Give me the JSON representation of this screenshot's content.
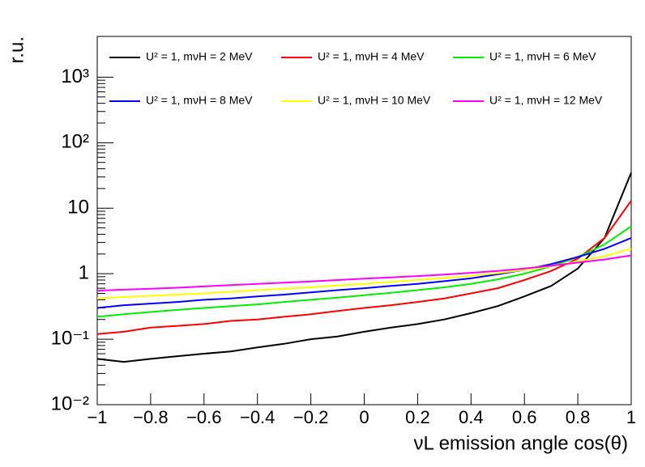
{
  "chart_data": {
    "type": "line",
    "x_label": "νL emission angle cos(θ)",
    "y_label": "r.u.",
    "x": [
      -1,
      -0.9,
      -0.8,
      -0.7,
      -0.6,
      -0.5,
      -0.4,
      -0.3,
      -0.2,
      -0.1,
      0,
      0.1,
      0.2,
      0.3,
      0.4,
      0.5,
      0.6,
      0.7,
      0.8,
      0.9,
      1
    ],
    "series": [
      {
        "name": "U² = 1, mνH = 2 MeV",
        "color": "#000000",
        "values": [
          0.05,
          0.045,
          0.05,
          0.055,
          0.06,
          0.065,
          0.075,
          0.085,
          0.1,
          0.11,
          0.13,
          0.15,
          0.17,
          0.2,
          0.25,
          0.32,
          0.45,
          0.65,
          1.2,
          3.5,
          35
        ]
      },
      {
        "name": "U² = 1, mνH = 4 MeV",
        "color": "#ff0000",
        "values": [
          0.12,
          0.13,
          0.15,
          0.16,
          0.17,
          0.19,
          0.2,
          0.22,
          0.24,
          0.27,
          0.3,
          0.33,
          0.37,
          0.42,
          0.5,
          0.6,
          0.8,
          1.1,
          1.7,
          3.5,
          13
        ]
      },
      {
        "name": "U² = 1, mνH = 6 MeV",
        "color": "#00ee00",
        "values": [
          0.22,
          0.24,
          0.26,
          0.28,
          0.3,
          0.32,
          0.34,
          0.37,
          0.4,
          0.43,
          0.47,
          0.51,
          0.56,
          0.62,
          0.7,
          0.82,
          1.0,
          1.3,
          1.8,
          2.8,
          5.3
        ]
      },
      {
        "name": "U² = 1, mνH = 8 MeV",
        "color": "#0000ff",
        "values": [
          0.3,
          0.33,
          0.35,
          0.37,
          0.4,
          0.42,
          0.45,
          0.48,
          0.52,
          0.56,
          0.6,
          0.65,
          0.7,
          0.77,
          0.85,
          0.98,
          1.15,
          1.4,
          1.8,
          2.4,
          3.5
        ]
      },
      {
        "name": "U² = 1, mνH = 10 MeV",
        "color": "#ffff00",
        "values": [
          0.42,
          0.44,
          0.46,
          0.48,
          0.5,
          0.53,
          0.56,
          0.59,
          0.62,
          0.66,
          0.7,
          0.75,
          0.8,
          0.86,
          0.93,
          1.02,
          1.15,
          1.3,
          1.55,
          1.85,
          2.4
        ]
      },
      {
        "name": "U² = 1, mνH = 12 MeV",
        "color": "#ff00ff",
        "values": [
          0.55,
          0.57,
          0.59,
          0.61,
          0.64,
          0.67,
          0.7,
          0.73,
          0.76,
          0.8,
          0.84,
          0.88,
          0.92,
          0.97,
          1.03,
          1.1,
          1.2,
          1.32,
          1.48,
          1.65,
          1.9
        ]
      }
    ],
    "xlim": [
      -1,
      1
    ],
    "ylim": [
      0.01,
      4200
    ],
    "y_log": true,
    "xticks": [
      {
        "value": -1,
        "label": "−1"
      },
      {
        "value": -0.8,
        "label": "−0.8"
      },
      {
        "value": -0.6,
        "label": "−0.6"
      },
      {
        "value": -0.4,
        "label": "−0.4"
      },
      {
        "value": -0.2,
        "label": "−0.2"
      },
      0,
      0.2,
      0.4,
      0.6,
      0.8,
      1
    ],
    "yticks": [
      {
        "value": 0.01,
        "label": "10⁻²"
      },
      {
        "value": 0.1,
        "label": "10⁻¹"
      },
      1,
      10,
      {
        "value": 100,
        "label": "10²"
      },
      {
        "value": 1000,
        "label": "10³"
      }
    ],
    "legend_columns": 3
  }
}
